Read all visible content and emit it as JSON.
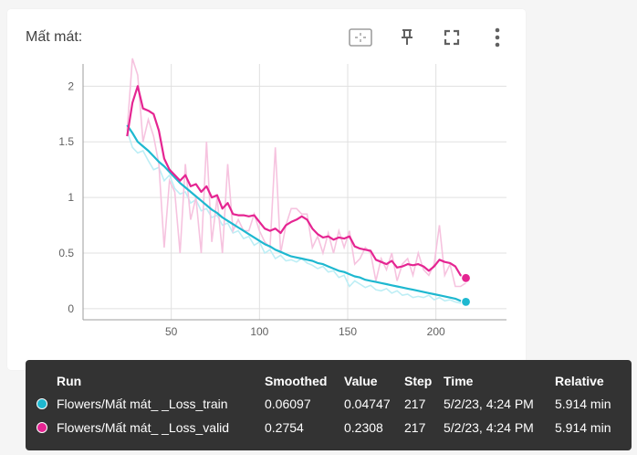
{
  "card": {
    "title": "Mất mát:",
    "toolbar": [
      "fit-domain-icon",
      "pin-icon",
      "fullscreen-icon",
      "more-vert-icon"
    ]
  },
  "chart_data": {
    "type": "line",
    "xlim": [
      0,
      240
    ],
    "ylim": [
      -0.1,
      2.2
    ],
    "x_ticks": [
      50,
      100,
      150,
      200
    ],
    "y_ticks": [
      0,
      0.5,
      1,
      1.5,
      2
    ],
    "x_tick_labels": [
      "50",
      "100",
      "150",
      "200"
    ],
    "y_tick_labels": [
      "0",
      "0.5",
      "1",
      "1.5",
      "2"
    ],
    "grid": true,
    "series": [
      {
        "name": "Flowers/Mất mát_ _Loss_train",
        "color": "#1eb8d0",
        "raw_color": "#bdeef5",
        "x": [
          25,
          28,
          31,
          34,
          37,
          40,
          43,
          46,
          49,
          52,
          55,
          58,
          61,
          64,
          67,
          70,
          73,
          76,
          79,
          82,
          85,
          88,
          91,
          94,
          97,
          100,
          103,
          106,
          109,
          112,
          115,
          118,
          121,
          124,
          127,
          130,
          133,
          136,
          139,
          142,
          145,
          148,
          151,
          154,
          157,
          160,
          163,
          166,
          169,
          172,
          175,
          178,
          181,
          184,
          187,
          190,
          193,
          196,
          199,
          202,
          205,
          208,
          211,
          214,
          217
        ],
        "smoothed": [
          1.65,
          1.58,
          1.5,
          1.46,
          1.42,
          1.37,
          1.32,
          1.28,
          1.23,
          1.18,
          1.13,
          1.09,
          1.05,
          1.01,
          0.97,
          0.93,
          0.89,
          0.86,
          0.82,
          0.79,
          0.76,
          0.73,
          0.7,
          0.67,
          0.64,
          0.61,
          0.58,
          0.56,
          0.53,
          0.51,
          0.49,
          0.47,
          0.46,
          0.45,
          0.44,
          0.43,
          0.41,
          0.4,
          0.38,
          0.36,
          0.34,
          0.33,
          0.31,
          0.29,
          0.28,
          0.26,
          0.25,
          0.24,
          0.23,
          0.22,
          0.21,
          0.2,
          0.19,
          0.18,
          0.17,
          0.16,
          0.15,
          0.14,
          0.13,
          0.12,
          0.11,
          0.1,
          0.09,
          0.07,
          0.06097
        ],
        "raw": [
          1.6,
          1.45,
          1.4,
          1.42,
          1.33,
          1.25,
          1.27,
          1.15,
          1.2,
          1.08,
          1.03,
          1.05,
          0.95,
          0.98,
          0.88,
          0.9,
          0.82,
          0.84,
          0.75,
          0.77,
          0.68,
          0.7,
          0.63,
          0.65,
          0.57,
          0.6,
          0.5,
          0.53,
          0.45,
          0.48,
          0.43,
          0.44,
          0.42,
          0.45,
          0.41,
          0.39,
          0.36,
          0.38,
          0.33,
          0.34,
          0.28,
          0.3,
          0.2,
          0.25,
          0.22,
          0.19,
          0.21,
          0.17,
          0.16,
          0.18,
          0.14,
          0.16,
          0.12,
          0.13,
          0.1,
          0.11,
          0.1,
          0.12,
          0.08,
          0.1,
          0.07,
          0.08,
          0.06,
          0.05,
          0.04747
        ]
      },
      {
        "name": "Flowers/Mất mát_ _Loss_valid",
        "color": "#e52592",
        "raw_color": "#f6c3df",
        "x": [
          25,
          28,
          31,
          34,
          37,
          40,
          43,
          46,
          49,
          52,
          55,
          58,
          61,
          64,
          67,
          70,
          73,
          76,
          79,
          82,
          85,
          88,
          91,
          94,
          97,
          100,
          103,
          106,
          109,
          112,
          115,
          118,
          121,
          124,
          127,
          130,
          133,
          136,
          139,
          142,
          145,
          148,
          151,
          154,
          157,
          160,
          163,
          166,
          169,
          172,
          175,
          178,
          181,
          184,
          187,
          190,
          193,
          196,
          199,
          202,
          205,
          208,
          211,
          214,
          217
        ],
        "smoothed": [
          1.55,
          1.85,
          2.0,
          1.8,
          1.78,
          1.75,
          1.6,
          1.35,
          1.25,
          1.2,
          1.15,
          1.2,
          1.1,
          1.12,
          1.05,
          1.1,
          1.0,
          1.02,
          0.9,
          0.95,
          0.85,
          0.84,
          0.84,
          0.83,
          0.84,
          0.78,
          0.72,
          0.7,
          0.72,
          0.68,
          0.75,
          0.78,
          0.8,
          0.83,
          0.8,
          0.72,
          0.67,
          0.64,
          0.65,
          0.62,
          0.64,
          0.63,
          0.65,
          0.56,
          0.54,
          0.53,
          0.52,
          0.44,
          0.42,
          0.4,
          0.43,
          0.37,
          0.38,
          0.4,
          0.39,
          0.4,
          0.38,
          0.34,
          0.38,
          0.44,
          0.42,
          0.41,
          0.38,
          0.3,
          0.2754
        ],
        "raw": [
          1.6,
          2.25,
          2.1,
          1.5,
          1.7,
          1.55,
          1.3,
          0.55,
          1.15,
          1.05,
          0.5,
          1.3,
          0.8,
          1.0,
          0.5,
          1.5,
          0.6,
          1.0,
          0.5,
          1.3,
          0.7,
          0.8,
          0.7,
          0.7,
          0.85,
          0.7,
          0.6,
          0.55,
          1.45,
          0.5,
          0.75,
          0.9,
          0.9,
          0.85,
          0.85,
          0.55,
          0.65,
          0.5,
          0.68,
          0.5,
          0.7,
          0.55,
          0.7,
          0.4,
          0.45,
          0.55,
          0.5,
          0.25,
          0.45,
          0.35,
          0.5,
          0.25,
          0.4,
          0.45,
          0.3,
          0.5,
          0.35,
          0.3,
          0.4,
          0.75,
          0.3,
          0.4,
          0.2,
          0.2,
          0.2308
        ]
      }
    ]
  },
  "tooltip": {
    "headers": {
      "run": "Run",
      "smoothed": "Smoothed",
      "value": "Value",
      "step": "Step",
      "time": "Time",
      "relative": "Relative"
    },
    "rows": [
      {
        "color": "#1eb8d0",
        "run": "Flowers/Mất mát_ _Loss_train",
        "smoothed": "0.06097",
        "value": "0.04747",
        "step": "217",
        "time": "5/2/23, 4:24 PM",
        "relative": "5.914 min"
      },
      {
        "color": "#e52592",
        "run": "Flowers/Mất mát_ _Loss_valid",
        "smoothed": "0.2754",
        "value": "0.2308",
        "step": "217",
        "time": "5/2/23, 4:24 PM",
        "relative": "5.914 min"
      }
    ]
  }
}
